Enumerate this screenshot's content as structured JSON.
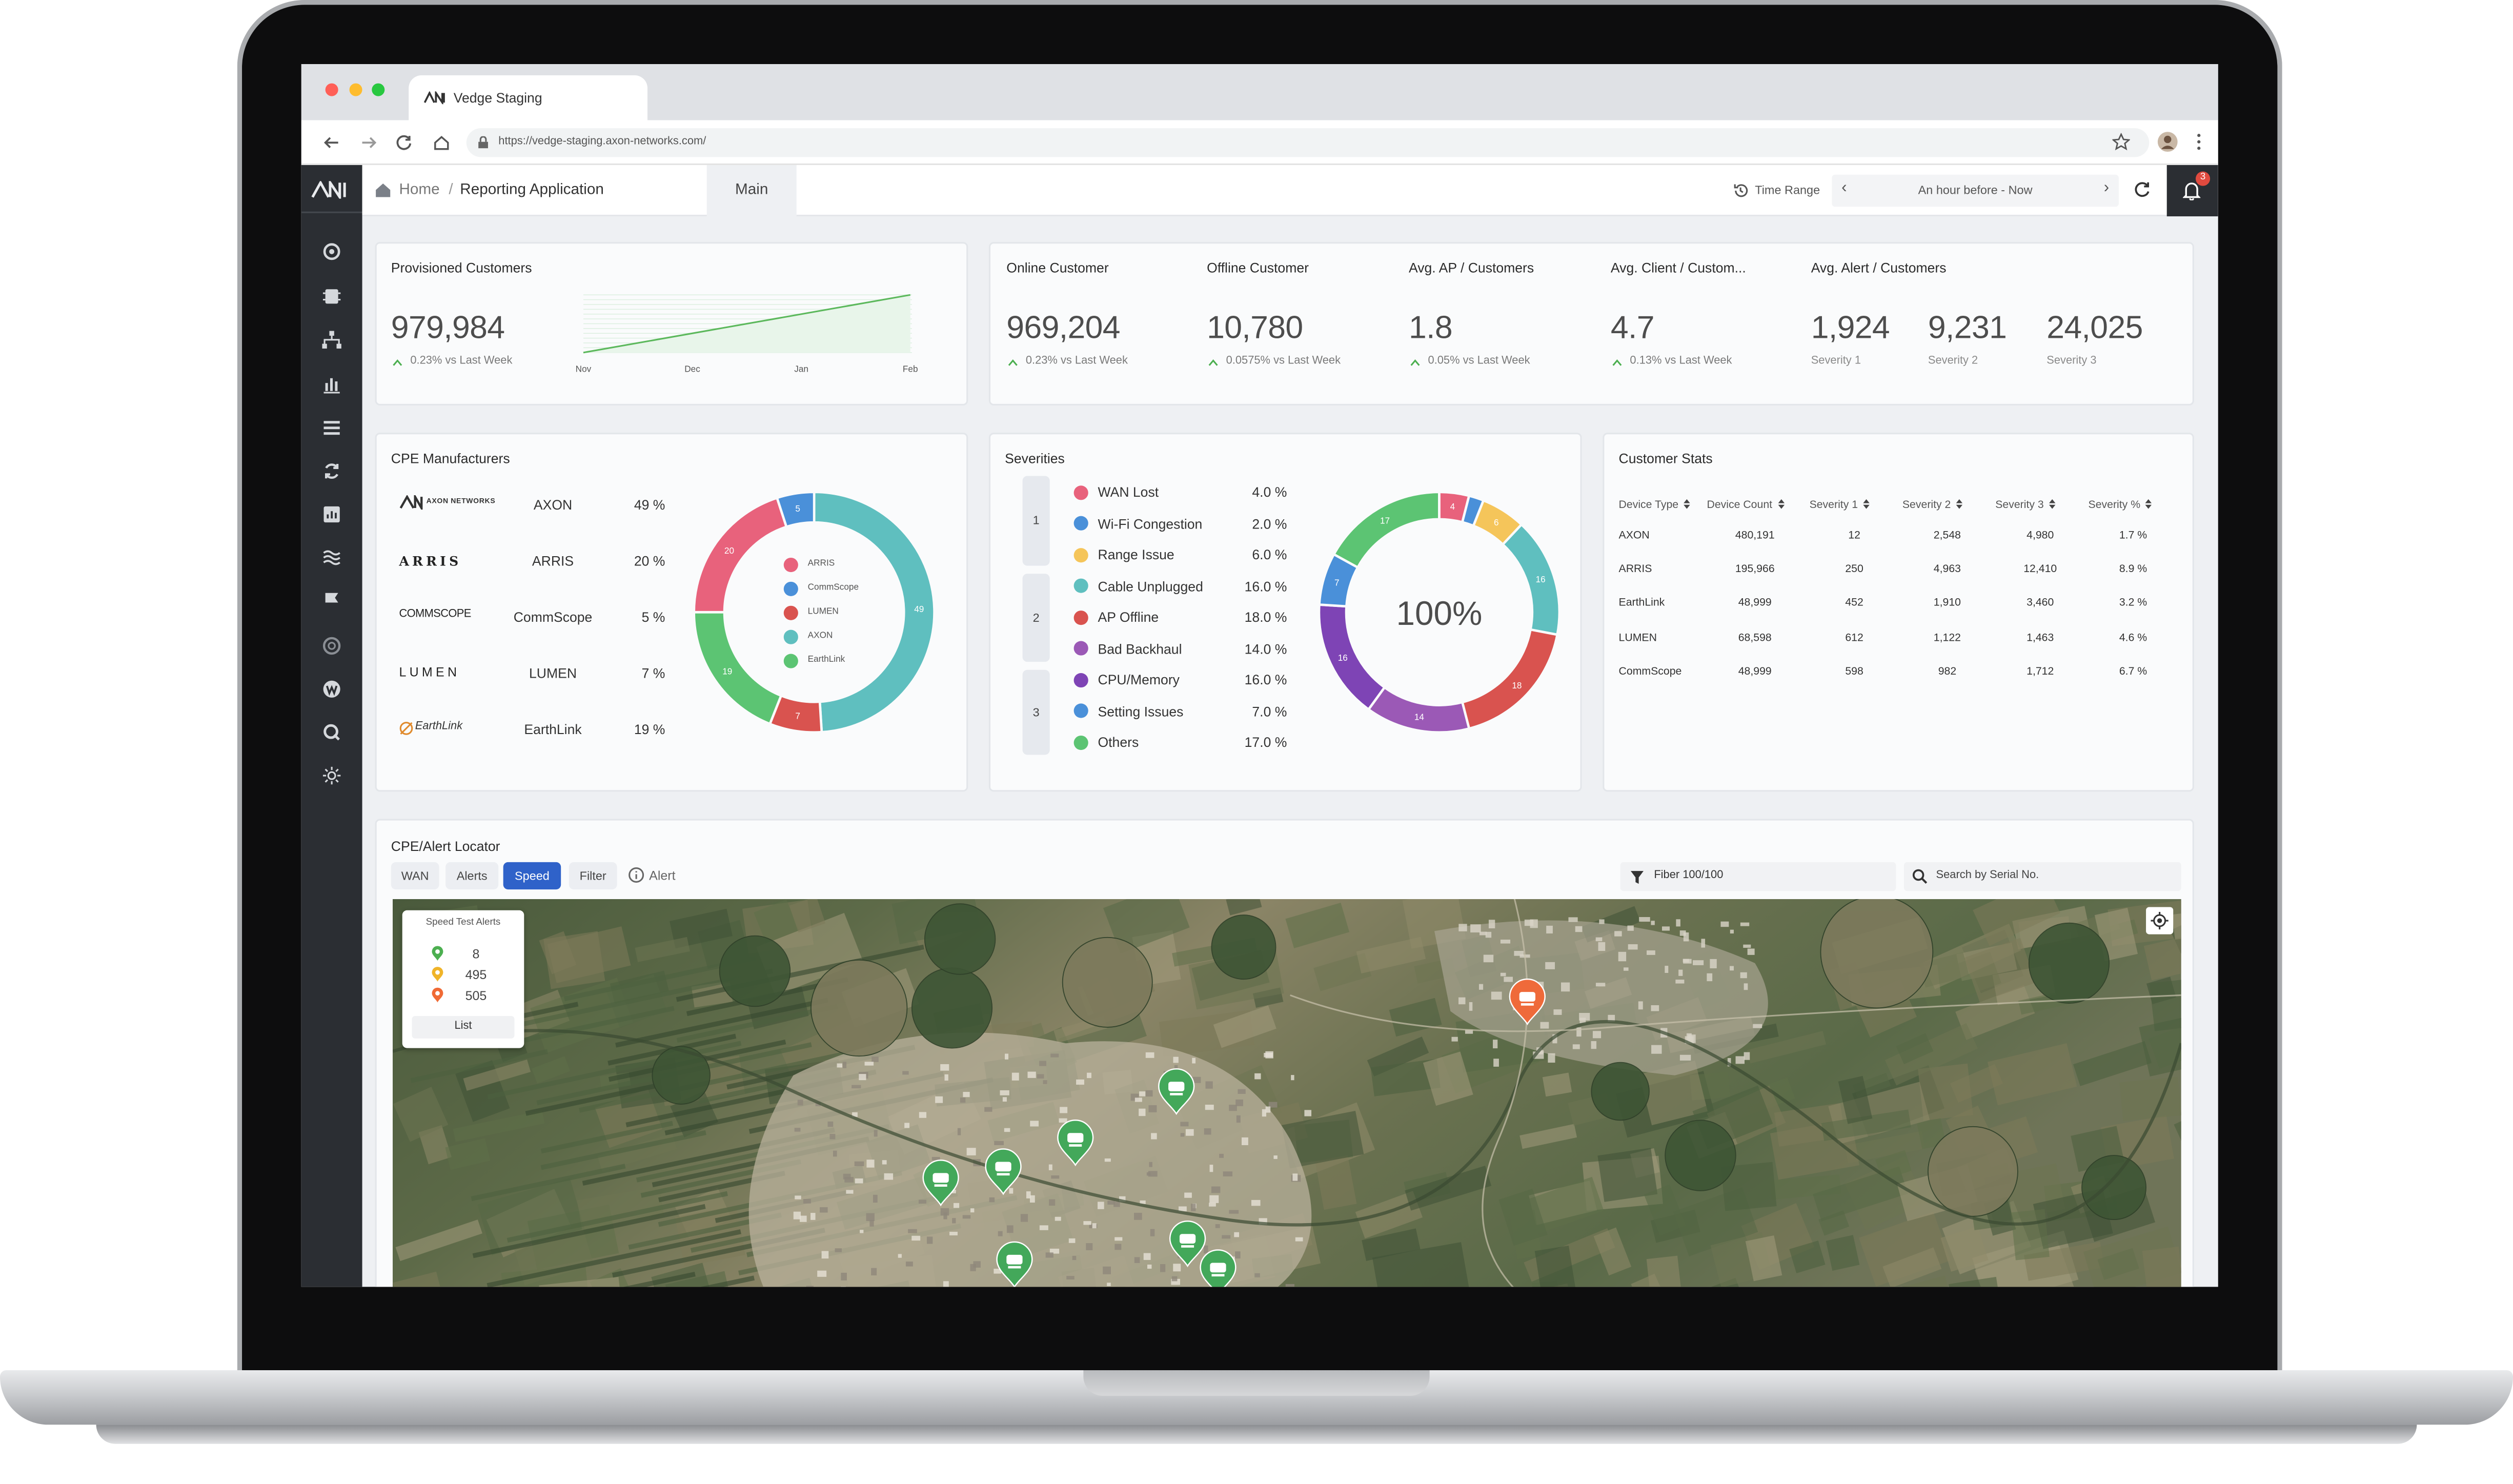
{
  "browser": {
    "tab_title": "Vedge Staging",
    "url": "https://vedge-staging.axon-networks.com/"
  },
  "header": {
    "home": "Home",
    "separator": "/",
    "page": "Reporting Application",
    "tab": "Main",
    "time_range_label": "Time Range",
    "time_range": "An hour before - Now",
    "notifications": "3"
  },
  "provisioned": {
    "title": "Provisioned Customers",
    "value": "979,984",
    "change": "0.23% vs Last Week",
    "months": [
      "Nov",
      "Dec",
      "Jan",
      "Feb"
    ]
  },
  "customers": {
    "items": [
      {
        "title": "Online Customer",
        "value": "969,204",
        "change": "0.23% vs Last Week"
      },
      {
        "title": "Offline Customer",
        "value": "10,780",
        "change": "0.0575% vs Last Week"
      },
      {
        "title": "Avg. AP / Customers",
        "value": "1.8",
        "change": "0.05% vs Last Week"
      },
      {
        "title": "Avg. Client / Custom...",
        "value": "4.7",
        "change": "0.13% vs Last Week"
      }
    ],
    "alerts": {
      "title": "Avg. Alert / Customers",
      "items": [
        {
          "value": "1,924",
          "label": "Severity 1"
        },
        {
          "value": "9,231",
          "label": "Severity 2"
        },
        {
          "value": "24,025",
          "label": "Severity 3"
        }
      ]
    }
  },
  "cpe": {
    "title": "CPE Manufacturers",
    "rows": [
      {
        "logo": "AXON NETWORKS",
        "name": "AXON",
        "share": "49 %"
      },
      {
        "logo": "ARRIS",
        "name": "ARRIS",
        "share": "20 %"
      },
      {
        "logo": "COMMSCOPE",
        "name": "CommScope",
        "share": "5 %"
      },
      {
        "logo": "LUMEN",
        "name": "LUMEN",
        "share": "7 %"
      },
      {
        "logo": "EarthLink",
        "name": "EarthLink",
        "share": "19 %"
      }
    ],
    "donut": {
      "legend": [
        {
          "name": "ARRIS",
          "color": "#e8627c"
        },
        {
          "name": "CommScope",
          "color": "#4a90d9"
        },
        {
          "name": "LUMEN",
          "color": "#d9534f"
        },
        {
          "name": "AXON",
          "color": "#5fbfbf"
        },
        {
          "name": "EarthLink",
          "color": "#5cc473"
        }
      ],
      "segments": [
        {
          "value": 49,
          "color": "#5fbfbf"
        },
        {
          "value": 7,
          "color": "#d9534f"
        },
        {
          "value": 19,
          "color": "#5cc473"
        },
        {
          "value": 20,
          "color": "#e8627c"
        },
        {
          "value": 5,
          "color": "#4a90d9"
        }
      ]
    }
  },
  "severities": {
    "title": "Severities",
    "groups": [
      {
        "label": "1",
        "items": [
          {
            "name": "WAN Lost",
            "color": "#e8627c",
            "share": "4.0 %"
          },
          {
            "name": "Wi-Fi Congestion",
            "color": "#4a90d9",
            "share": "2.0 %"
          },
          {
            "name": "Range Issue",
            "color": "#f5c55a",
            "share": "6.0 %"
          }
        ]
      },
      {
        "label": "2",
        "items": [
          {
            "name": "Cable Unplugged",
            "color": "#5fbfbf",
            "share": "16.0 %"
          },
          {
            "name": "AP Offline",
            "color": "#d9534f",
            "share": "18.0 %"
          },
          {
            "name": "Bad Backhaul",
            "color": "#9b59b6",
            "share": "14.0 %"
          }
        ]
      },
      {
        "label": "3",
        "items": [
          {
            "name": "CPU/Memory",
            "color": "#7e44b5",
            "share": "16.0 %"
          },
          {
            "name": "Setting Issues",
            "color": "#4a90d9",
            "share": "7.0 %"
          },
          {
            "name": "Others",
            "color": "#5cc473",
            "share": "17.0 %"
          }
        ]
      }
    ],
    "donut": {
      "center": "100%",
      "segments": [
        {
          "value": 4,
          "color": "#e8627c"
        },
        {
          "value": 2,
          "color": "#4a90d9"
        },
        {
          "value": 6,
          "color": "#f5c55a"
        },
        {
          "value": 16,
          "color": "#5fbfbf"
        },
        {
          "value": 18,
          "color": "#d9534f"
        },
        {
          "value": 14,
          "color": "#9b59b6"
        },
        {
          "value": 16,
          "color": "#7e44b5"
        },
        {
          "value": 7,
          "color": "#4a90d9"
        },
        {
          "value": 17,
          "color": "#5cc473"
        }
      ]
    }
  },
  "customer_stats": {
    "title": "Customer Stats",
    "columns": [
      "Device Type",
      "Device Count",
      "Severity 1",
      "Severity 2",
      "Severity 3",
      "Severity %"
    ],
    "rows": [
      [
        "AXON",
        "480,191",
        "12",
        "2,548",
        "4,980",
        "1.7 %"
      ],
      [
        "ARRIS",
        "195,966",
        "250",
        "4,963",
        "12,410",
        "8.9 %"
      ],
      [
        "EarthLink",
        "48,999",
        "452",
        "1,910",
        "3,460",
        "3.2 %"
      ],
      [
        "LUMEN",
        "68,598",
        "612",
        "1,122",
        "1,463",
        "4.6 %"
      ],
      [
        "CommScope",
        "48,999",
        "598",
        "982",
        "1,712",
        "6.7 %"
      ]
    ]
  },
  "locator": {
    "title": "CPE/Alert Locator",
    "buttons": [
      {
        "label": "WAN",
        "active": false
      },
      {
        "label": "Alerts",
        "active": false
      },
      {
        "label": "Speed",
        "active": true
      },
      {
        "label": "Filter",
        "active": false
      }
    ],
    "alert": "Alert",
    "filter": "Fiber 100/100",
    "search": "Search by Serial No.",
    "legend": {
      "title": "Speed Test Alerts",
      "counts": [
        {
          "value": "8",
          "color": "#4caf50"
        },
        {
          "value": "495",
          "color": "#f0b429"
        },
        {
          "value": "505",
          "color": "#f06a35"
        }
      ],
      "button": "List"
    }
  }
}
